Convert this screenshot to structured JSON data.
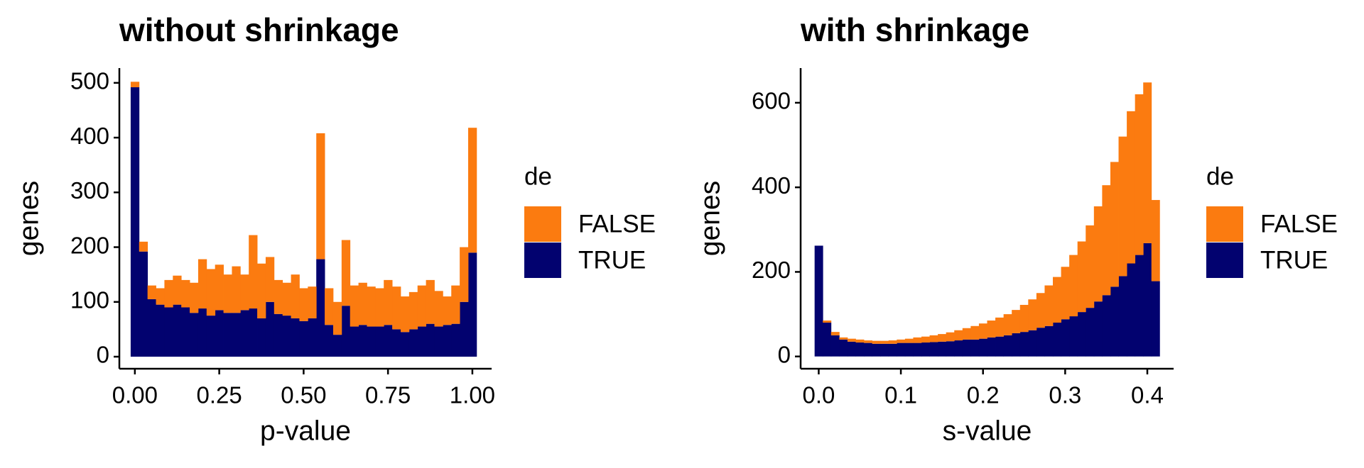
{
  "chart_data": [
    {
      "type": "histogram",
      "title": "without shrinkage",
      "x_label": "p-value",
      "y_label": "genes",
      "legend_title": "de",
      "bins": [
        -0.0125,
        0.0125,
        0.0375,
        0.0625,
        0.0875,
        0.1125,
        0.1375,
        0.1625,
        0.1875,
        0.2125,
        0.2375,
        0.2625,
        0.2875,
        0.3125,
        0.3375,
        0.3625,
        0.3875,
        0.4125,
        0.4375,
        0.4625,
        0.4875,
        0.5125,
        0.5375,
        0.5625,
        0.5875,
        0.6125,
        0.6375,
        0.6625,
        0.6875,
        0.7125,
        0.7375,
        0.7625,
        0.7875,
        0.8125,
        0.8375,
        0.8625,
        0.8875,
        0.9125,
        0.9375,
        0.9625,
        0.9875,
        1.0125
      ],
      "stacked": true,
      "series": [
        {
          "name": "TRUE",
          "color": "#02026f",
          "values": [
            492,
            192,
            105,
            95,
            90,
            95,
            90,
            80,
            88,
            75,
            85,
            80,
            80,
            85,
            88,
            70,
            100,
            78,
            75,
            70,
            65,
            70,
            178,
            58,
            40,
            93,
            55,
            58,
            55,
            55,
            58,
            50,
            45,
            50,
            55,
            60,
            55,
            58,
            60,
            100,
            190
          ]
        },
        {
          "name": "FALSE",
          "color": "#fb7b10",
          "values": [
            10,
            18,
            25,
            30,
            50,
            53,
            50,
            55,
            90,
            85,
            83,
            70,
            85,
            65,
            134,
            100,
            82,
            62,
            60,
            80,
            60,
            58,
            230,
            67,
            60,
            120,
            75,
            77,
            73,
            70,
            82,
            78,
            65,
            68,
            75,
            80,
            65,
            52,
            70,
            100,
            228
          ]
        }
      ],
      "xlim": [
        -0.046,
        1.057
      ],
      "xticks": [
        {
          "value": 0,
          "label": "0.00"
        },
        0.25,
        {
          "value": 0.5,
          "label": "0.50"
        },
        0.75,
        {
          "value": 1,
          "label": "1.00"
        }
      ],
      "ylim": [
        -22,
        527
      ],
      "yticks": [
        0,
        100,
        200,
        300,
        400,
        500
      ],
      "grid": false
    },
    {
      "type": "histogram",
      "title": "with shrinkage",
      "x_label": "s-value",
      "y_label": "genes",
      "legend_title": "de",
      "bins": [
        -0.005,
        0.005,
        0.015,
        0.025,
        0.035,
        0.045,
        0.055,
        0.065,
        0.075,
        0.085,
        0.095,
        0.105,
        0.115,
        0.125,
        0.135,
        0.145,
        0.155,
        0.165,
        0.175,
        0.185,
        0.195,
        0.205,
        0.215,
        0.225,
        0.235,
        0.245,
        0.255,
        0.265,
        0.275,
        0.285,
        0.295,
        0.305,
        0.315,
        0.325,
        0.335,
        0.345,
        0.355,
        0.365,
        0.375,
        0.385,
        0.395,
        0.405,
        0.415
      ],
      "stacked": true,
      "series": [
        {
          "name": "TRUE",
          "color": "#02026f",
          "values": [
            262,
            80,
            50,
            40,
            35,
            33,
            32,
            30,
            30,
            30,
            32,
            32,
            32,
            33,
            34,
            35,
            36,
            38,
            40,
            40,
            42,
            45,
            47,
            50,
            55,
            58,
            62,
            68,
            72,
            80,
            88,
            95,
            105,
            115,
            130,
            145,
            165,
            190,
            220,
            240,
            268,
            178
          ]
        },
        {
          "name": "FALSE",
          "color": "#fb7b10",
          "values": [
            0,
            5,
            8,
            5,
            7,
            7,
            6,
            7,
            7,
            8,
            8,
            10,
            13,
            14,
            16,
            18,
            21,
            24,
            27,
            32,
            36,
            40,
            45,
            50,
            55,
            64,
            73,
            82,
            96,
            108,
            124,
            145,
            167,
            195,
            225,
            260,
            295,
            330,
            360,
            380,
            380,
            192
          ]
        }
      ],
      "xlim": [
        -0.022,
        0.432
      ],
      "xticks": [
        {
          "value": 0,
          "label": "0.0"
        },
        0.1,
        0.2,
        0.3,
        0.4
      ],
      "ylim": [
        -29,
        682
      ],
      "yticks": [
        0,
        200,
        400,
        600
      ],
      "grid": false
    }
  ]
}
